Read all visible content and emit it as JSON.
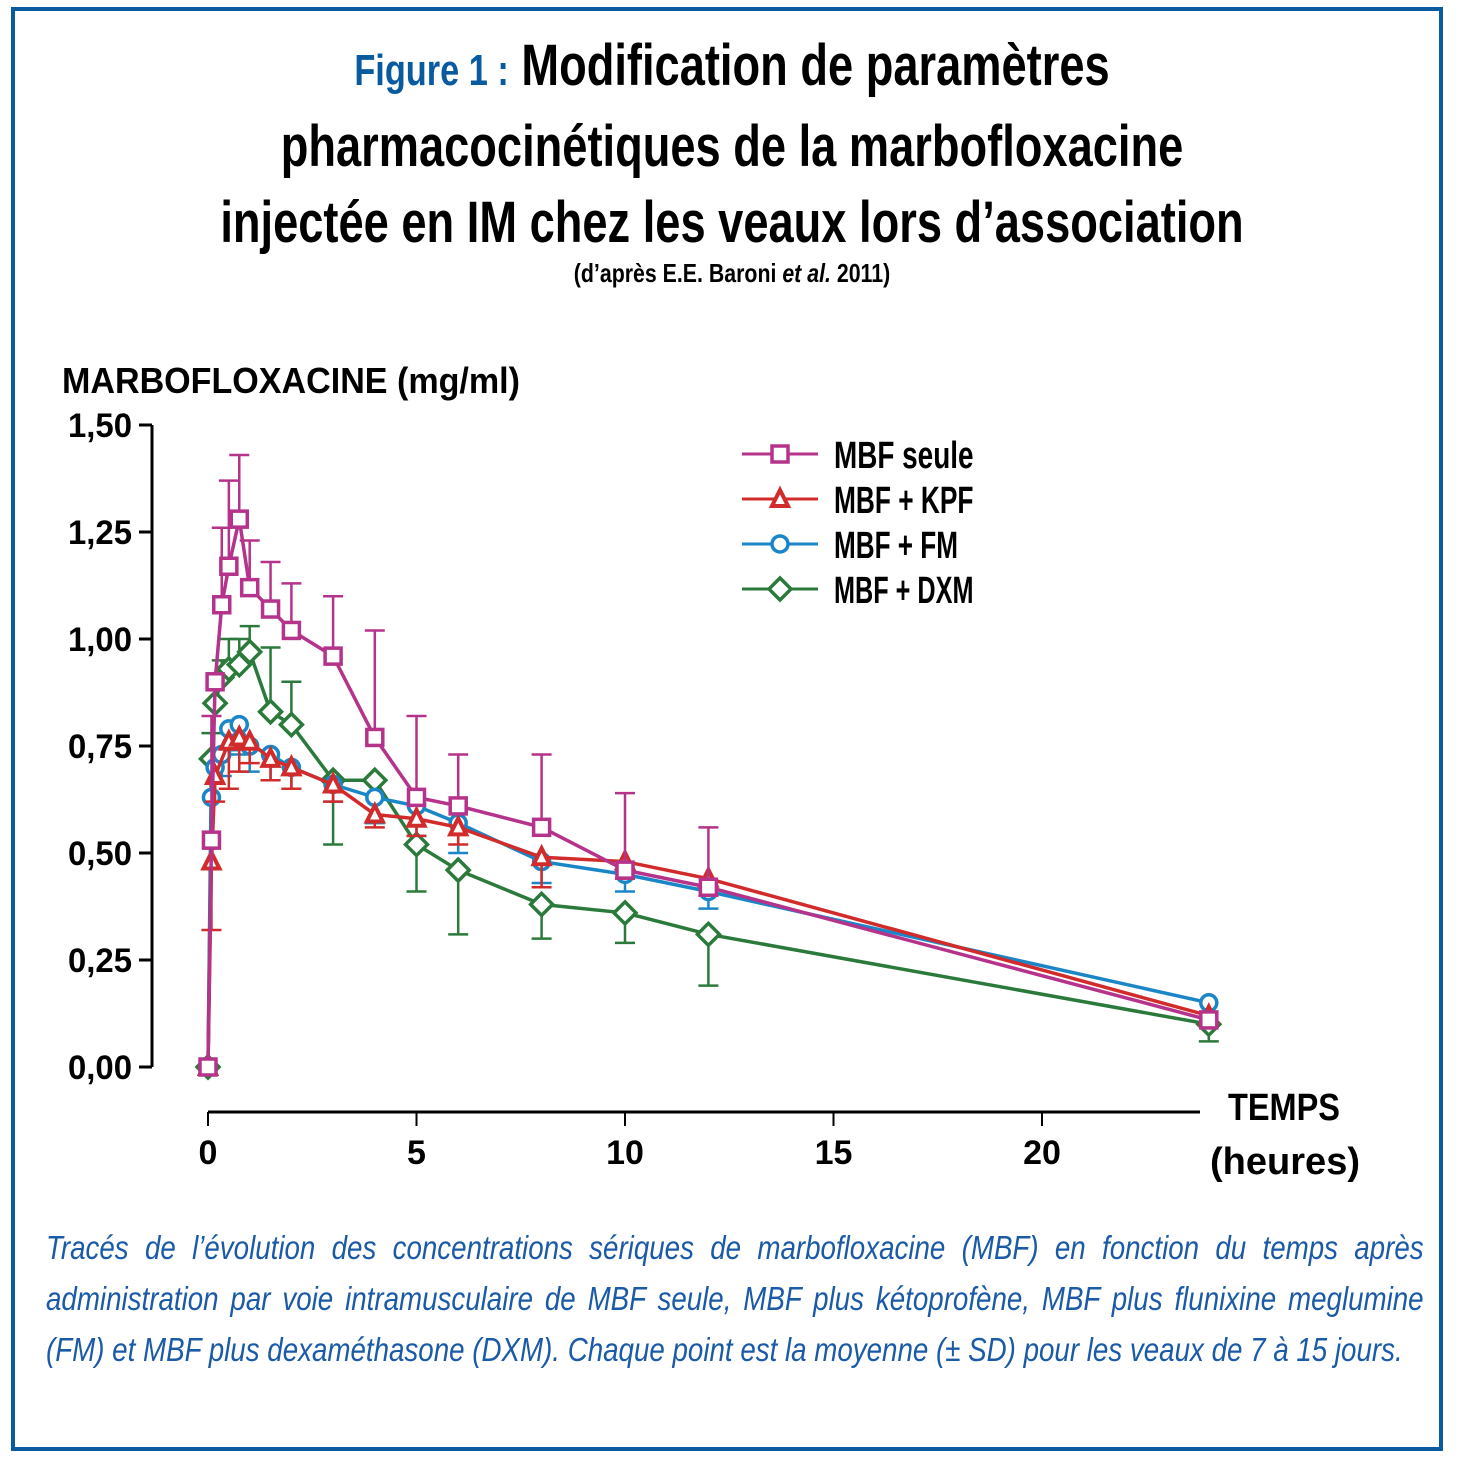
{
  "figure": {
    "label": "Figure 1 :",
    "title_lines": [
      "Modification de paramètres",
      "pharmacocinétiques de la marbofloxacine",
      "injectée en IM chez les veaux lors d’association"
    ],
    "source_prefix": "(d’après E.E. Baroni ",
    "source_italic": "et al.",
    "source_suffix": " 2011)",
    "caption": "Tracés de l’évolution des concentrations sériques de marbofloxacine (MBF) en fonction du temps après administration par voie intramusculaire de MBF seule, MBF plus kétoprofène, MBF plus flunixine meglumine (FM) et MBF plus dexaméthasone (DXM). Chaque point est la moyenne (± SD) pour les veaux de 7 à 15 jours.",
    "border_color": "#0a5aa0",
    "caption_color": "#1a5aa6"
  },
  "chart_data": {
    "type": "line",
    "title": "Modification de paramètres pharmacocinétiques de la marbofloxacine injectée en IM chez les veaux lors d’association",
    "ylabel": "MARBOFLOXACINE (mg/ml)",
    "xlabel_line1": "TEMPS",
    "xlabel_line2": "(heures)",
    "xlim": [
      0,
      24
    ],
    "ylim": [
      0,
      1.5
    ],
    "xticks": [
      0,
      5,
      10,
      15,
      20
    ],
    "xtick_labels": [
      "0",
      "5",
      "10",
      "15",
      "20"
    ],
    "yticks": [
      0,
      0.25,
      0.5,
      0.75,
      1.0,
      1.25,
      1.5
    ],
    "ytick_labels": [
      "0,00",
      "0,25",
      "0,50",
      "0,75",
      "1,00",
      "1,25",
      "1,50"
    ],
    "grid": false,
    "legend_position": "top-right",
    "series": [
      {
        "name": "MBF seule",
        "color": "#b5338a",
        "marker": "square",
        "x": [
          0,
          0.083,
          0.17,
          0.33,
          0.5,
          0.75,
          1,
          1.5,
          2,
          3,
          4,
          5,
          6,
          8,
          10,
          12,
          24
        ],
        "y": [
          0,
          0.53,
          0.9,
          1.08,
          1.17,
          1.28,
          1.12,
          1.07,
          1.02,
          0.96,
          0.77,
          0.63,
          0.61,
          0.56,
          0.46,
          0.42,
          0.11
        ],
        "sd": [
          0,
          0.29,
          0.0,
          0.18,
          0.2,
          0.15,
          0.11,
          0.11,
          0.11,
          0.14,
          0.25,
          0.19,
          0.12,
          0.17,
          0.18,
          0.14,
          0.0
        ]
      },
      {
        "name": "MBF + KPF",
        "color": "#d12b2b",
        "marker": "triangle",
        "x": [
          0,
          0.083,
          0.17,
          0.5,
          0.75,
          1,
          1.5,
          2,
          3,
          4,
          5,
          6,
          8,
          10,
          12,
          24
        ],
        "y": [
          0,
          0.48,
          0.68,
          0.76,
          0.77,
          0.76,
          0.72,
          0.7,
          0.66,
          0.59,
          0.58,
          0.56,
          0.49,
          0.48,
          0.44,
          0.12
        ],
        "sd": [
          0,
          0.16,
          0.06,
          0.11,
          0.08,
          0.05,
          0.05,
          0.05,
          0.04,
          0.03,
          0.04,
          0.04,
          0.07,
          0.04,
          0.04,
          0.0
        ]
      },
      {
        "name": "MBF + FM",
        "color": "#1a86c8",
        "marker": "circle",
        "x": [
          0,
          0.083,
          0.17,
          0.33,
          0.5,
          0.75,
          1,
          1.5,
          2,
          3,
          4,
          5,
          6,
          8,
          10,
          12,
          24
        ],
        "y": [
          0,
          0.63,
          0.7,
          0.73,
          0.79,
          0.8,
          0.75,
          0.73,
          0.7,
          0.66,
          0.63,
          0.61,
          0.57,
          0.48,
          0.45,
          0.41,
          0.15
        ],
        "sd": [
          0,
          0.0,
          0.0,
          0.05,
          0.05,
          0.07,
          0.06,
          0.06,
          0.05,
          0.04,
          0.06,
          0.07,
          0.07,
          0.05,
          0.04,
          0.04,
          0.0
        ]
      },
      {
        "name": "MBF + DXM",
        "color": "#2b7a3c",
        "marker": "diamond",
        "x": [
          0,
          0.083,
          0.17,
          0.33,
          0.5,
          0.75,
          1,
          1.5,
          2,
          3,
          4,
          5,
          6,
          8,
          10,
          12,
          24
        ],
        "y": [
          0,
          0.72,
          0.85,
          0.91,
          0.93,
          0.94,
          0.97,
          0.83,
          0.8,
          0.67,
          0.67,
          0.52,
          0.46,
          0.38,
          0.36,
          0.31,
          0.1
        ],
        "sd": [
          0,
          0.06,
          0.0,
          0.04,
          0.07,
          0.06,
          0.06,
          0.15,
          0.1,
          0.15,
          0.1,
          0.11,
          0.15,
          0.08,
          0.07,
          0.12,
          0.04
        ]
      }
    ]
  }
}
